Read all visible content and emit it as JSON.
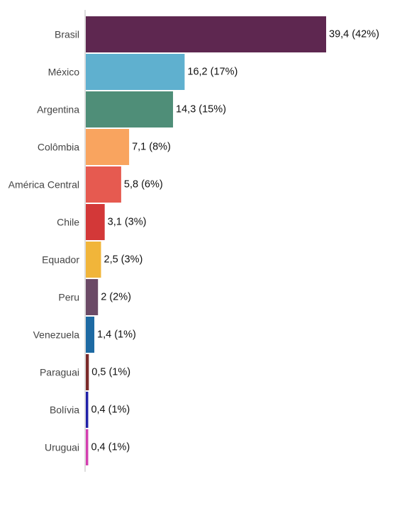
{
  "chart_data": {
    "type": "bar",
    "orientation": "horizontal",
    "categories": [
      "Brasil",
      "México",
      "Argentina",
      "Colômbia",
      "América Central",
      "Chile",
      "Equador",
      "Peru",
      "Venezuela",
      "Paraguai",
      "Bolívia",
      "Uruguai"
    ],
    "values": [
      39.4,
      16.2,
      14.3,
      7.1,
      5.8,
      3.1,
      2.5,
      2.0,
      1.4,
      0.5,
      0.4,
      0.4
    ],
    "value_labels": [
      "39,4 (42%)",
      "16,2 (17%)",
      "14,3 (15%)",
      "7,1 (8%)",
      "5,8 (6%)",
      "3,1 (3%)",
      "2,5 (3%)",
      "2 (2%)",
      "1,4 (1%)",
      "0,5 (1%)",
      "0,4 (1%)",
      "0,4 (1%)"
    ],
    "colors": [
      "#5e2750",
      "#5fb0cf",
      "#4f8e78",
      "#f9a45f",
      "#e65a50",
      "#d33838",
      "#f1b53a",
      "#6b4a66",
      "#1d6aa3",
      "#7a2a2a",
      "#2020a8",
      "#d43fb0"
    ],
    "xlim": [
      0,
      39.4
    ],
    "grid": false,
    "legend": "none"
  }
}
